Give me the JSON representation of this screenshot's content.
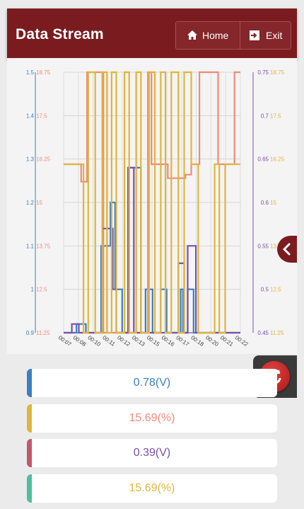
{
  "header": {
    "title": "Data Stream",
    "home_label": "Home",
    "exit_label": "Exit"
  },
  "icons": {
    "home": "home-icon",
    "exit": "exit-icon",
    "collapse": "chevron-left-icon",
    "refresh": "refresh-icon"
  },
  "colors": {
    "header": "#7a1c1f",
    "blue": "#3a7fc1",
    "salmon": "#f08a78",
    "purple": "#7a4fb0",
    "gold": "#e0b53c"
  },
  "chart_data": {
    "type": "line",
    "x": [
      "00:07",
      "00:08",
      "00:10",
      "00:11",
      "00:12",
      "00:13",
      "00:15",
      "00:16",
      "00:17",
      "00:18",
      "00:20",
      "00:21",
      "00:22"
    ],
    "left_axis_1": {
      "range": [
        0.9,
        1.5
      ],
      "ticks": [
        "0.9",
        "1",
        "1.1",
        "1.2",
        "1.3",
        "1.4",
        "1.5"
      ],
      "color": "#3a7fc1"
    },
    "left_axis_2": {
      "range": [
        11.25,
        18.75
      ],
      "ticks": [
        "11.25",
        "12.5",
        "13.75",
        "15",
        "16.25",
        "17.5",
        "18.75"
      ],
      "color": "#f08a78"
    },
    "right_axis_1": {
      "range": [
        0.45,
        0.75
      ],
      "ticks": [
        "0.45",
        "0.5",
        "0.55",
        "0.6",
        "0.65",
        "0.7",
        "0.75"
      ],
      "color": "#7a4fb0"
    },
    "right_axis_2": {
      "range": [
        11.25,
        18.75
      ],
      "ticks": [
        "11.25",
        "12.5",
        "13.75",
        "15",
        "16.25",
        "17.5",
        "18.75"
      ],
      "color": "#e0b53c"
    },
    "grid": true,
    "series": [
      {
        "axis": "left_axis_1",
        "color": "#3a7fc1",
        "x": [
          7.0,
          8.1,
          8.1,
          8.9,
          8.9,
          10.2,
          10.2,
          11.0,
          11.0,
          11.4,
          11.4,
          12.0,
          12.0,
          12.6,
          12.6,
          13.6,
          13.6,
          14.0,
          14.0,
          14.6,
          14.6,
          15.3,
          15.3,
          15.8,
          15.8,
          17.0,
          17.0,
          17.2,
          17.2,
          17.6,
          17.6,
          18.1,
          18.1,
          18.4,
          18.4,
          22.1
        ],
        "y": [
          0.9,
          0.9,
          0.92,
          0.92,
          0.9,
          0.9,
          1.1,
          1.1,
          1.2,
          1.2,
          1.0,
          1.0,
          0.9,
          0.9,
          1.28,
          1.28,
          0.9,
          0.9,
          1.0,
          1.0,
          0.9,
          0.9,
          1.0,
          1.0,
          0.9,
          0.9,
          1.0,
          1.0,
          0.9,
          0.9,
          1.0,
          1.0,
          0.9,
          0.9,
          0.9,
          0.9
        ]
      },
      {
        "axis": "left_axis_2",
        "color": "#f08a78",
        "x": [
          7.0,
          8.5,
          8.5,
          9.0,
          9.0,
          10.4,
          10.4,
          14.2,
          14.2,
          14.5,
          14.5,
          15.9,
          15.9,
          17.4,
          17.4,
          17.9,
          17.9,
          18.6,
          18.6,
          20.2,
          20.2,
          21.6,
          21.6,
          22.1
        ],
        "y": [
          16.1,
          16.1,
          15.6,
          15.6,
          18.75,
          18.75,
          11.25,
          11.25,
          18.75,
          18.75,
          16.1,
          16.1,
          15.7,
          15.7,
          15.8,
          15.8,
          16.1,
          16.1,
          18.75,
          18.75,
          16.1,
          16.1,
          18.75,
          18.75
        ]
      },
      {
        "axis": "right_axis_1",
        "color": "#7a4fb0",
        "x": [
          7.0,
          7.7,
          7.7,
          8.3,
          8.3,
          10.3,
          10.3,
          11.2,
          11.2,
          11.5,
          11.5,
          12.0,
          12.0,
          12.5,
          12.5,
          13.0,
          13.0,
          13.6,
          13.6,
          14.0,
          14.0,
          16.8,
          16.8,
          17.3,
          17.3,
          17.6,
          17.6,
          18.3,
          18.3,
          18.6,
          18.6,
          22.1
        ],
        "y": [
          0.45,
          0.45,
          0.46,
          0.46,
          0.45,
          0.45,
          0.57,
          0.57,
          0.5,
          0.5,
          0.45,
          0.45,
          0.45,
          0.45,
          0.64,
          0.64,
          0.45,
          0.45,
          0.45,
          0.45,
          0.45,
          0.45,
          0.53,
          0.53,
          0.45,
          0.45,
          0.55,
          0.55,
          0.45,
          0.45,
          0.45,
          0.45
        ]
      },
      {
        "axis": "right_axis_2",
        "color": "#e0b53c",
        "x": [
          7.0,
          8.7,
          8.7,
          9.1,
          9.1,
          9.7,
          9.7,
          10.3,
          10.3,
          10.7,
          10.7,
          11.1,
          11.1,
          11.5,
          11.5,
          12.2,
          12.2,
          12.6,
          12.6,
          13.2,
          13.2,
          13.6,
          13.6,
          14.3,
          14.3,
          14.8,
          14.8,
          15.3,
          15.3,
          15.7,
          15.7,
          16.2,
          16.2,
          16.8,
          16.8,
          17.3,
          17.3,
          17.9,
          17.9,
          18.5,
          18.5,
          19.9,
          19.9,
          20.3,
          20.3,
          20.8,
          20.8,
          22.1
        ],
        "y": [
          16.1,
          16.1,
          11.25,
          11.25,
          18.75,
          18.75,
          11.25,
          11.25,
          18.75,
          18.75,
          11.25,
          11.25,
          18.75,
          18.75,
          11.25,
          11.25,
          18.75,
          18.75,
          11.25,
          11.25,
          18.75,
          18.75,
          11.25,
          11.25,
          18.75,
          18.75,
          11.25,
          11.25,
          18.75,
          18.75,
          11.25,
          11.25,
          18.75,
          18.75,
          11.25,
          11.25,
          18.75,
          18.75,
          16.1,
          16.1,
          11.25,
          11.25,
          16.1,
          16.1,
          11.25,
          11.25,
          16.1,
          16.1
        ]
      }
    ]
  },
  "values": [
    {
      "text": "0.78(V)",
      "color": "#3a7fc1",
      "bar": "#3a7fc1"
    },
    {
      "text": "15.69(%)",
      "color": "#f08a78",
      "bar": "#e0b53c"
    },
    {
      "text": "0.39(V)",
      "color": "#7a4fb0",
      "bar": "#c2566b"
    },
    {
      "text": "15.69(%)",
      "color": "#e0b53c",
      "bar": "#4dbf9c"
    }
  ]
}
